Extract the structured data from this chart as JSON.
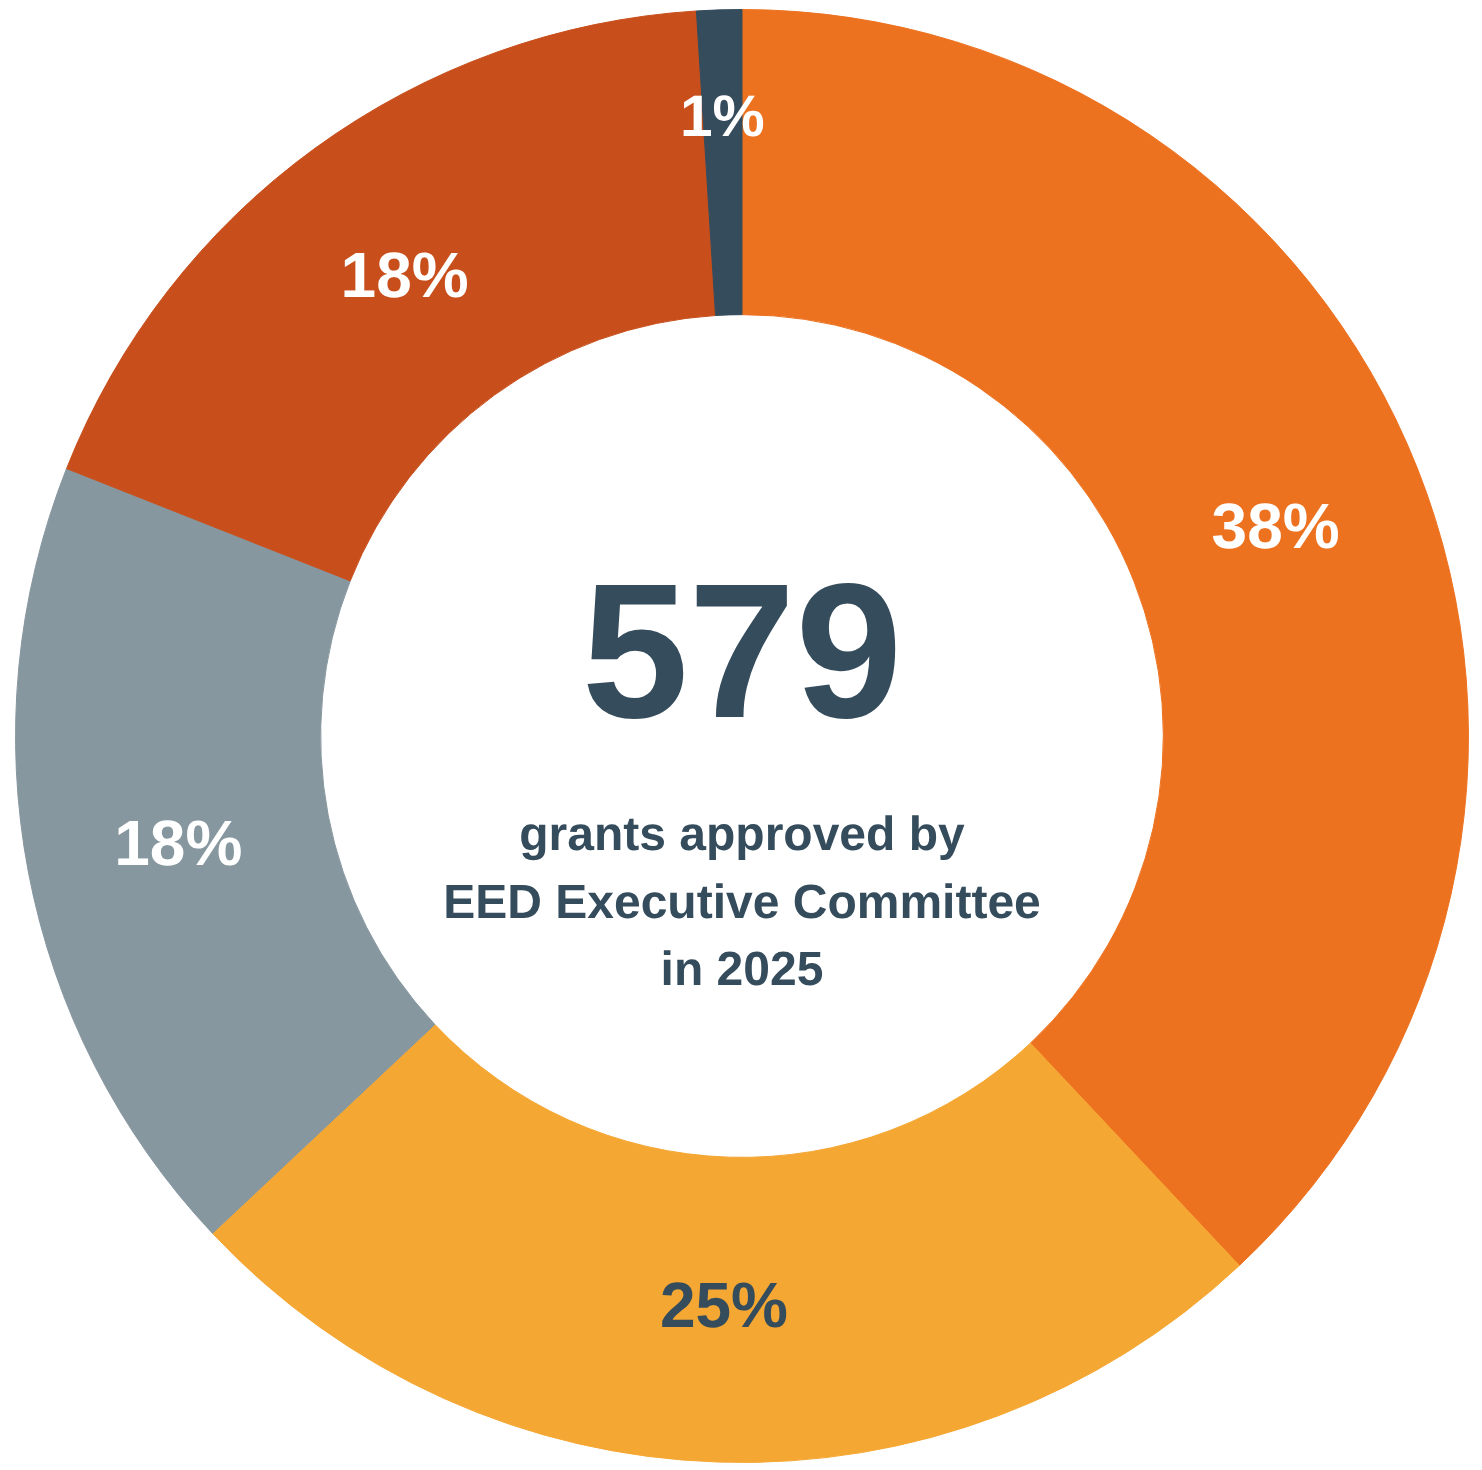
{
  "chart_data": {
    "type": "donut",
    "title": "579",
    "subtitle": "grants approved by\nEED Executive Committee\nin 2025",
    "categories": [
      null,
      null,
      null,
      null,
      null
    ],
    "values": [
      38,
      25,
      18,
      18,
      1
    ],
    "colors": [
      "#ed7220",
      "#f5a733",
      "#87979f",
      "#c84f1c",
      "#354c5c"
    ],
    "value_labels": [
      "38%",
      "25%",
      "18%",
      "18%",
      "1%"
    ]
  }
}
